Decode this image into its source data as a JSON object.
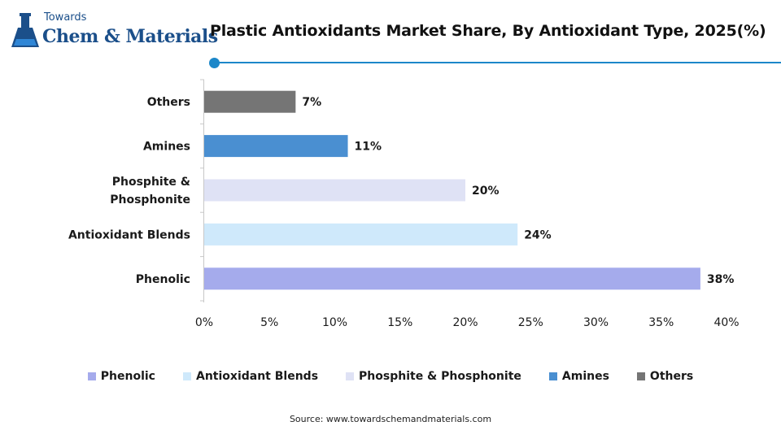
{
  "logo": {
    "small": "Towards",
    "big": "Chem & Materials"
  },
  "title": "Plastic Antioxidants Market Share, By Antioxidant Type, 2025(%)",
  "source": "Source: www.towardschemandmaterials.com",
  "chart_data": {
    "type": "bar",
    "orientation": "horizontal",
    "title": "Plastic Antioxidants Market Share, By Antioxidant Type, 2025(%)",
    "categories": [
      "Others",
      "Amines",
      "Phosphite & Phosphonite",
      "Antioxidant Blends",
      "Phenolic"
    ],
    "category_lines": [
      [
        "Others"
      ],
      [
        "Amines"
      ],
      [
        "Phosphite &",
        "Phosphonite"
      ],
      [
        "Antioxidant Blends"
      ],
      [
        "Phenolic"
      ]
    ],
    "values": [
      7,
      11,
      20,
      24,
      38
    ],
    "value_labels": [
      "7%",
      "11%",
      "20%",
      "24%",
      "38%"
    ],
    "colors": [
      "#757575",
      "#4a8fd1",
      "#dfe2f5",
      "#cfe9fb",
      "#a5abec"
    ],
    "xlim": [
      0,
      40
    ],
    "xticks": [
      0,
      5,
      10,
      15,
      20,
      25,
      30,
      35,
      40
    ],
    "xtick_labels": [
      "0%",
      "5%",
      "10%",
      "15%",
      "20%",
      "25%",
      "30%",
      "35%",
      "40%"
    ],
    "grid": false,
    "legend_position": "bottom",
    "legend": [
      {
        "name": "Phenolic",
        "color": "#a5abec"
      },
      {
        "name": "Antioxidant Blends",
        "color": "#cfe9fb"
      },
      {
        "name": "Phosphite & Phosphonite",
        "color": "#dfe2f5"
      },
      {
        "name": "Amines",
        "color": "#4a8fd1"
      },
      {
        "name": "Others",
        "color": "#757575"
      }
    ]
  }
}
